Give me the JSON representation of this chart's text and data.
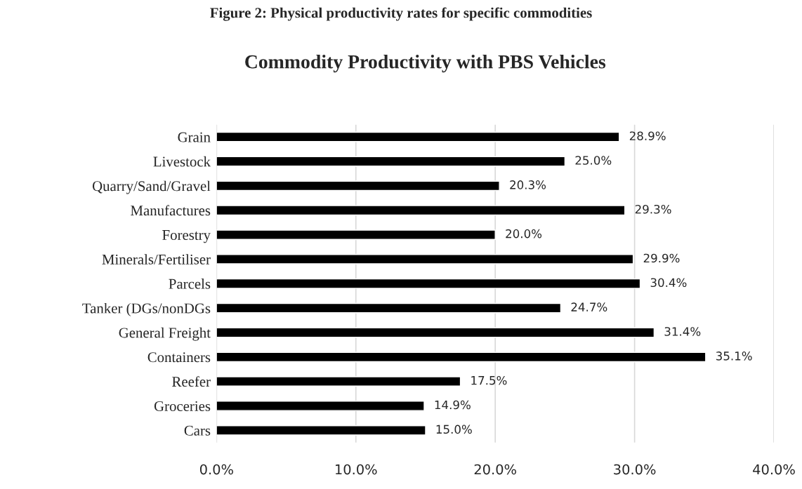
{
  "chart_data": {
    "type": "bar",
    "orientation": "horizontal",
    "title": "Figure 2: Physical productivity rates for specific commodities",
    "subtitle": "Commodity Productivity with PBS Vehicles",
    "categories": [
      "Grain",
      "Livestock",
      "Quarry/Sand/Gravel",
      "Manufactures",
      "Forestry",
      "Minerals/Fertiliser",
      "Parcels",
      "Tanker (DGs/nonDGs",
      "General Freight",
      "Containers",
      "Reefer",
      "Groceries",
      "Cars"
    ],
    "values": [
      28.9,
      25.0,
      20.3,
      29.3,
      20.0,
      29.9,
      30.4,
      24.7,
      31.4,
      35.1,
      17.5,
      14.9,
      15.0
    ],
    "value_labels": [
      "28.9%",
      "25.0%",
      "20.3%",
      "29.3%",
      "20.0%",
      "29.9%",
      "30.4%",
      "24.7%",
      "31.4%",
      "35.1%",
      "17.5%",
      "14.9%",
      "15.0%"
    ],
    "color": "#000000",
    "xlim": [
      0,
      40
    ],
    "xticks": [
      {
        "value": 0,
        "label": "0.0%"
      },
      {
        "value": 10,
        "label": "10.0%"
      },
      {
        "value": 20,
        "label": "20.0%"
      },
      {
        "value": 30,
        "label": "30.0%"
      },
      {
        "value": 40,
        "label": "40.0%"
      }
    ],
    "grid": "x"
  }
}
